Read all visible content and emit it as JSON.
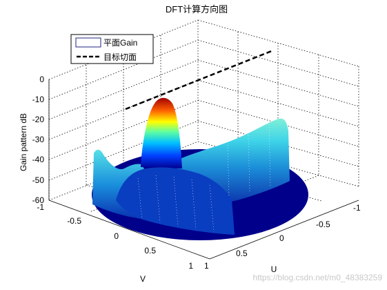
{
  "chart_data": {
    "type": "surface",
    "title": "DFT计算方向图",
    "xlabel": "U",
    "ylabel": "V",
    "zlabel": "Gain pattern  dB",
    "xlim": [
      -1,
      1
    ],
    "ylim": [
      -1,
      1
    ],
    "zlim": [
      -60,
      0
    ],
    "u_ticks": [
      "-1",
      "-0.5",
      "0",
      "0.5",
      "1"
    ],
    "v_ticks": [
      "-1",
      "-0.5",
      "0",
      "0.5",
      "1"
    ],
    "z_ticks": [
      "0",
      "-10",
      "-20",
      "-30",
      "-40",
      "-50",
      "-60"
    ],
    "grid": true,
    "colormap": "jet",
    "legend_position": "top-left",
    "legend": [
      {
        "label": "平面Gain",
        "style": "surface"
      },
      {
        "label": "目标切面",
        "style": "dashed-black"
      }
    ],
    "peak": {
      "u": 0,
      "v": -0.3,
      "gain_db": -8
    },
    "floor_db": -60
  },
  "watermark": "https://blog.csdn.net/m0_48383259"
}
